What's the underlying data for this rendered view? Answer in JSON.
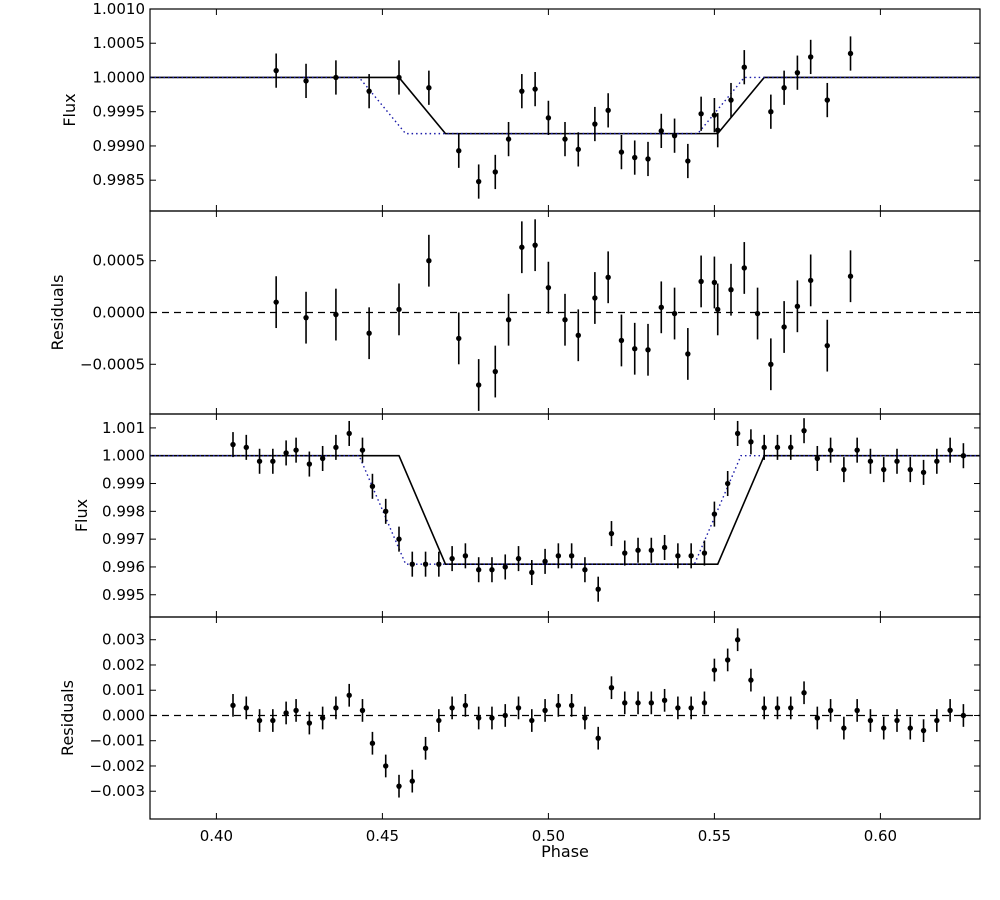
{
  "chart_data": [
    {
      "type": "scatter",
      "panel": "flux-top",
      "ylabel": "Flux",
      "xlabel": "",
      "xlim": [
        0.38,
        0.63
      ],
      "ylim": [
        0.99805,
        1.001
      ],
      "yticks": [
        "1.0010",
        "1.0005",
        "1.0000",
        "0.9995",
        "0.9990",
        "0.9985"
      ],
      "ytick_values": [
        1.001,
        1.0005,
        1.0,
        0.9995,
        0.999,
        0.9985
      ],
      "series": [
        {
          "kind": "errorbar",
          "x": [
            0.418,
            0.427,
            0.436,
            0.446,
            0.455,
            0.464,
            0.473,
            0.479,
            0.484,
            0.488,
            0.492,
            0.496,
            0.5,
            0.505,
            0.509,
            0.514,
            0.518,
            0.522,
            0.526,
            0.53,
            0.534,
            0.538,
            0.542,
            0.546,
            0.55,
            0.551,
            0.555,
            0.559,
            0.567,
            0.571,
            0.575,
            0.579,
            0.584,
            0.591
          ],
          "y": [
            1.0001,
            0.99995,
            1.0,
            0.9998,
            1.0,
            0.99985,
            0.99893,
            0.99848,
            0.99862,
            0.9991,
            0.9998,
            0.99983,
            0.99941,
            0.9991,
            0.99895,
            0.99932,
            0.99952,
            0.99891,
            0.99883,
            0.99881,
            0.99922,
            0.99915,
            0.99878,
            0.99947,
            0.99945,
            0.99923,
            0.99967,
            1.00015,
            0.9995,
            0.99985,
            1.00007,
            1.0003,
            0.99967,
            1.00035
          ],
          "yerr": 0.00025
        },
        {
          "kind": "line-solid",
          "x": [
            0.38,
            0.455,
            0.469,
            0.551,
            0.565,
            0.63
          ],
          "y": [
            1.0,
            1.0,
            0.99918,
            0.99918,
            1.0,
            1.0
          ]
        },
        {
          "kind": "line-dotted",
          "x": [
            0.38,
            0.443,
            0.457,
            0.545,
            0.559,
            0.63
          ],
          "y": [
            1.0,
            1.0,
            0.99918,
            0.99918,
            1.0,
            1.0
          ]
        }
      ]
    },
    {
      "type": "scatter",
      "panel": "residuals-top",
      "ylabel": "Residuals",
      "xlabel": "",
      "xlim": [
        0.38,
        0.63
      ],
      "ylim": [
        -0.00098,
        0.00098
      ],
      "yticks": [
        "0.0005",
        "0.0000",
        "−0.0005"
      ],
      "ytick_values": [
        0.0005,
        0.0,
        -0.0005
      ],
      "series": [
        {
          "kind": "errorbar",
          "x": [
            0.418,
            0.427,
            0.436,
            0.446,
            0.455,
            0.464,
            0.473,
            0.479,
            0.484,
            0.488,
            0.492,
            0.496,
            0.5,
            0.505,
            0.509,
            0.514,
            0.518,
            0.522,
            0.526,
            0.53,
            0.534,
            0.538,
            0.542,
            0.546,
            0.55,
            0.551,
            0.555,
            0.559,
            0.563,
            0.567,
            0.571,
            0.575,
            0.579,
            0.584,
            0.591
          ],
          "y": [
            0.0001,
            -5e-05,
            -2e-05,
            -0.0002,
            3e-05,
            0.0005,
            -0.00025,
            -0.0007,
            -0.00057,
            -7e-05,
            0.00063,
            0.00065,
            0.00024,
            -7e-05,
            -0.00022,
            0.00014,
            0.00034,
            -0.00027,
            -0.00035,
            -0.00036,
            5e-05,
            -1e-05,
            -0.0004,
            0.0003,
            0.00029,
            3e-05,
            0.00022,
            0.00043,
            -1e-05,
            -0.0005,
            -0.00014,
            6e-05,
            0.00031,
            -0.00032,
            0.00035
          ],
          "yerr": 0.00025
        },
        {
          "kind": "zero-dashed",
          "x": [
            0.38,
            0.63
          ],
          "y": [
            0.0,
            0.0
          ]
        }
      ]
    },
    {
      "type": "scatter",
      "panel": "flux-bottom",
      "ylabel": "Flux",
      "xlabel": "",
      "xlim": [
        0.38,
        0.63
      ],
      "ylim": [
        0.9942,
        1.0015
      ],
      "yticks": [
        "1.001",
        "1.000",
        "0.999",
        "0.998",
        "0.997",
        "0.996",
        "0.995"
      ],
      "ytick_values": [
        1.001,
        1.0,
        0.999,
        0.998,
        0.997,
        0.996,
        0.995
      ],
      "series": [
        {
          "kind": "errorbar",
          "x": [
            0.405,
            0.409,
            0.413,
            0.417,
            0.421,
            0.424,
            0.428,
            0.432,
            0.436,
            0.44,
            0.444,
            0.447,
            0.451,
            0.455,
            0.459,
            0.463,
            0.467,
            0.471,
            0.475,
            0.479,
            0.483,
            0.487,
            0.491,
            0.495,
            0.499,
            0.503,
            0.507,
            0.511,
            0.515,
            0.519,
            0.523,
            0.527,
            0.531,
            0.535,
            0.539,
            0.543,
            0.547,
            0.55,
            0.554,
            0.557,
            0.561,
            0.565,
            0.569,
            0.573,
            0.577,
            0.581,
            0.585,
            0.589,
            0.593,
            0.597,
            0.601,
            0.605,
            0.609,
            0.613,
            0.617,
            0.621,
            0.625
          ],
          "y": [
            1.0004,
            1.0003,
            0.9998,
            0.9998,
            1.0001,
            1.0002,
            0.9997,
            0.9999,
            1.0003,
            1.0008,
            1.0002,
            0.9989,
            0.998,
            0.997,
            0.9961,
            0.9961,
            0.9961,
            0.9963,
            0.9964,
            0.9959,
            0.9959,
            0.996,
            0.9963,
            0.9958,
            0.9962,
            0.9964,
            0.9964,
            0.9959,
            0.9952,
            0.9972,
            0.9965,
            0.9966,
            0.9966,
            0.9967,
            0.9964,
            0.9964,
            0.9965,
            0.9979,
            0.999,
            1.0008,
            1.0005,
            1.0003,
            1.0003,
            1.0003,
            1.0009,
            0.9999,
            1.0002,
            0.9995,
            1.0002,
            0.9998,
            0.9995,
            0.9998,
            0.9995,
            0.9994,
            0.9998,
            1.0002,
            1.0
          ]
        },
        {
          "kind": "line-solid",
          "x": [
            0.38,
            0.455,
            0.469,
            0.551,
            0.565,
            0.63
          ],
          "y": [
            1.0,
            1.0,
            0.9961,
            0.9961,
            1.0,
            1.0
          ]
        },
        {
          "kind": "line-dotted",
          "x": [
            0.38,
            0.443,
            0.457,
            0.544,
            0.558,
            0.63
          ],
          "y": [
            1.0,
            1.0,
            0.9961,
            0.9961,
            1.0,
            1.0
          ]
        }
      ]
    },
    {
      "type": "scatter",
      "panel": "residuals-bottom",
      "ylabel": "Residuals",
      "xlabel": "Phase",
      "xlim": [
        0.38,
        0.63
      ],
      "ylim": [
        -0.0041,
        0.0039
      ],
      "yticks": [
        "0.003",
        "0.002",
        "0.001",
        "0.000",
        "−0.001",
        "−0.002",
        "−0.003"
      ],
      "ytick_values": [
        0.003,
        0.002,
        0.001,
        0.0,
        -0.001,
        -0.002,
        -0.003
      ],
      "xticks": [
        "0.40",
        "0.45",
        "0.50",
        "0.55",
        "0.60"
      ],
      "xtick_values": [
        0.4,
        0.45,
        0.5,
        0.55,
        0.6
      ],
      "series": [
        {
          "kind": "errorbar",
          "x": [
            0.405,
            0.409,
            0.413,
            0.417,
            0.421,
            0.424,
            0.428,
            0.432,
            0.436,
            0.44,
            0.444,
            0.447,
            0.451,
            0.455,
            0.459,
            0.463,
            0.467,
            0.471,
            0.475,
            0.479,
            0.483,
            0.487,
            0.491,
            0.495,
            0.499,
            0.503,
            0.507,
            0.511,
            0.515,
            0.519,
            0.523,
            0.527,
            0.531,
            0.535,
            0.539,
            0.543,
            0.547,
            0.55,
            0.554,
            0.557,
            0.561,
            0.565,
            0.569,
            0.573,
            0.577,
            0.581,
            0.585,
            0.589,
            0.593,
            0.597,
            0.601,
            0.605,
            0.609,
            0.613,
            0.617,
            0.621,
            0.625
          ],
          "y": [
            0.0004,
            0.0003,
            -0.0002,
            -0.0002,
            0.0001,
            0.0002,
            -0.0003,
            -0.0001,
            0.0003,
            0.0008,
            0.0002,
            -0.0011,
            -0.002,
            -0.0028,
            -0.0026,
            -0.0013,
            -0.0002,
            0.0003,
            0.0004,
            -0.0001,
            -0.0001,
            0.0,
            0.0003,
            -0.0002,
            0.0002,
            0.0004,
            0.0004,
            -0.0001,
            -0.0009,
            0.0011,
            0.0005,
            0.0005,
            0.0005,
            0.0006,
            0.0003,
            0.0003,
            0.0005,
            0.0018,
            0.0022,
            0.003,
            0.0014,
            0.0003,
            0.0003,
            0.0003,
            0.0009,
            -0.0001,
            0.0002,
            -0.0005,
            0.0002,
            -0.0002,
            -0.0005,
            -0.0002,
            -0.0005,
            -0.0006,
            -0.0002,
            0.0002,
            0.0
          ]
        },
        {
          "kind": "zero-dashed",
          "x": [
            0.38,
            0.63
          ],
          "y": [
            0.0,
            0.0
          ]
        }
      ]
    }
  ]
}
